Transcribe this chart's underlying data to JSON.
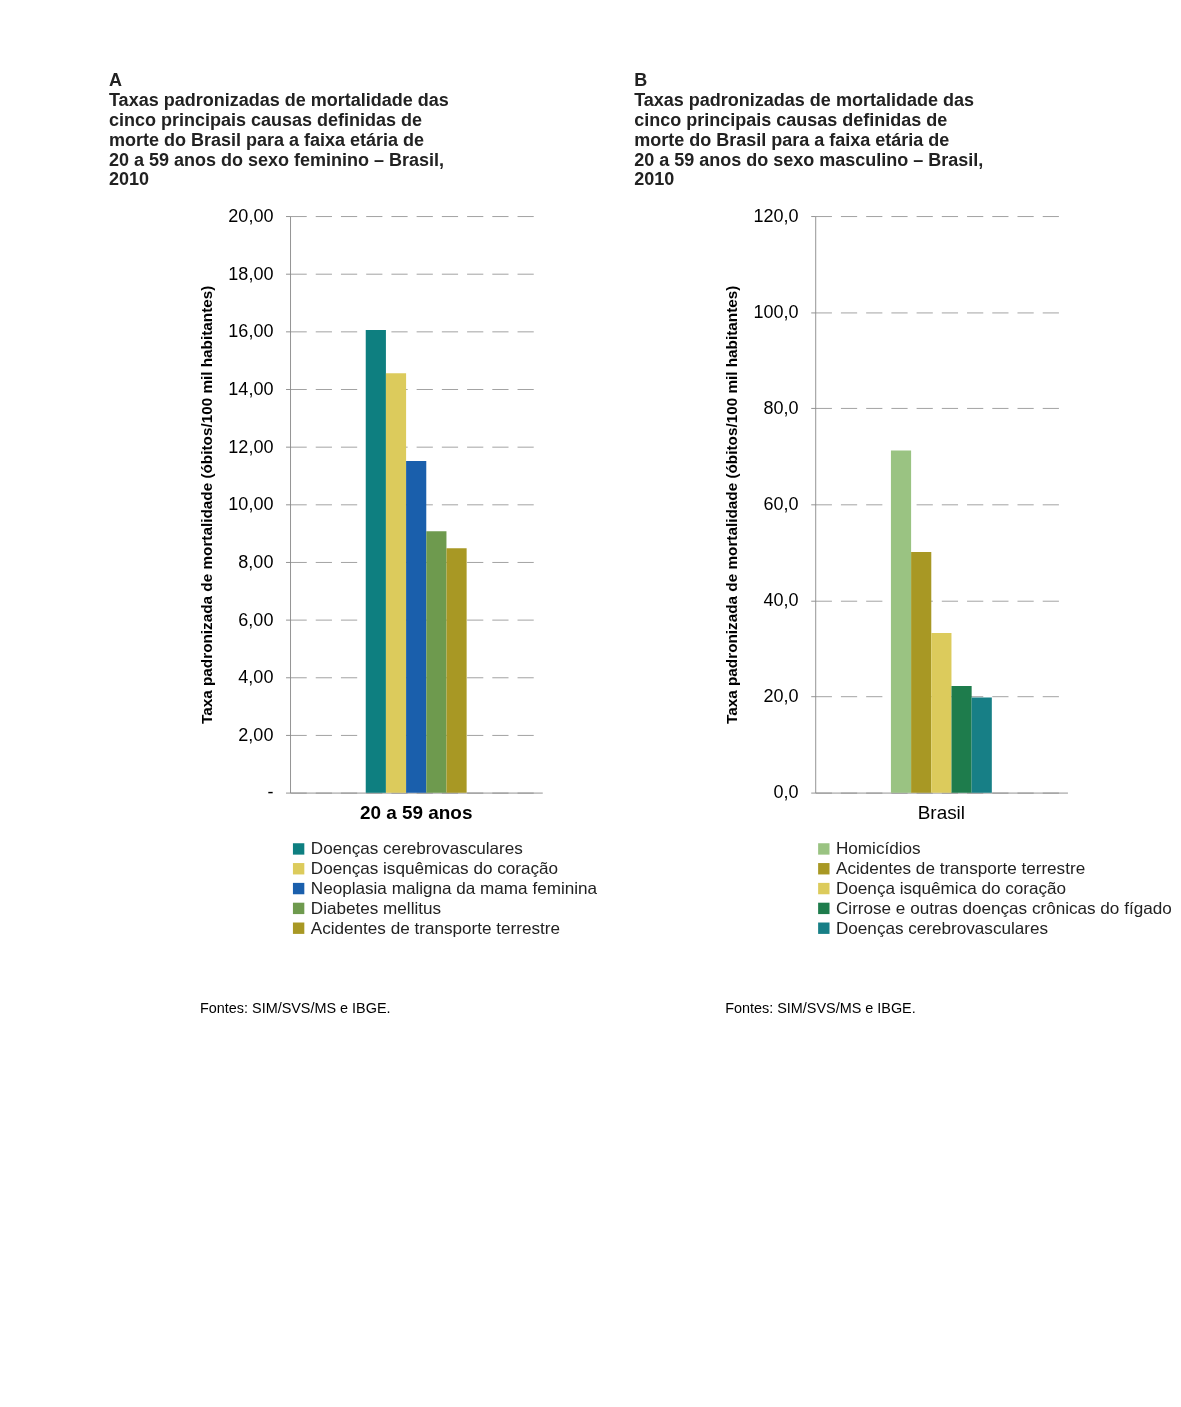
{
  "chart_data": [
    {
      "type": "bar",
      "title": "Taxas padronizadas de mortalidade das cinco principais causas definidas de morte do Brasil para a faixa etária de 20 a 59 anos do sexo feminino – Brasil, 2010",
      "ylabel": "Taxa padronizada de mortalidade (óbitos/100 mil habitantes)",
      "categories": [
        "20 a 59 anos"
      ],
      "series": [
        {
          "name": "Doenças cerebrovasculares",
          "color": "#0e7f80",
          "values": [
            16.05
          ]
        },
        {
          "name": "Doenças isquêmicas do coração",
          "color": "#dccb5c",
          "values": [
            14.55
          ]
        },
        {
          "name": "Neoplasia maligna da mama feminina",
          "color": "#1a5fac",
          "values": [
            11.5
          ]
        },
        {
          "name": "Diabetes mellitus",
          "color": "#6e9a4e",
          "values": [
            9.07
          ]
        },
        {
          "name": "Acidentes de transporte terrestre",
          "color": "#a89824",
          "values": [
            8.48
          ]
        }
      ],
      "ylim": [
        0,
        20
      ],
      "yticks": [
        {
          "value": 0,
          "label": "-"
        },
        {
          "value": 2,
          "label": "2,00"
        },
        {
          "value": 4,
          "label": "4,00"
        },
        {
          "value": 6,
          "label": "6,00"
        },
        {
          "value": 8,
          "label": "8,00"
        },
        {
          "value": 10,
          "label": "10,00"
        },
        {
          "value": 12,
          "label": "12,00"
        },
        {
          "value": 14,
          "label": "14,00"
        },
        {
          "value": 16,
          "label": "16,00"
        },
        {
          "value": 18,
          "label": "18,00"
        },
        {
          "value": 20,
          "label": "20,00"
        }
      ],
      "grid": "y",
      "legend": "bottom",
      "annotations": [
        "A",
        "Fontes: SIM/SVS/MS e IBGE."
      ]
    },
    {
      "type": "bar",
      "title": "Taxas padronizadas de mortalidade das cinco principais causas definidas de morte do Brasil para a faixa etária de 20 a 59 anos do sexo masculino – Brasil, 2010",
      "ylabel": "Taxa padronizada de mortalidade (óbitos/100 mil habitantes)",
      "categories": [
        "Brasil"
      ],
      "series": [
        {
          "name": "Homicídios",
          "color": "#9ac382",
          "values": [
            71.2
          ]
        },
        {
          "name": "Acidentes de transporte terrestre",
          "color": "#a89824",
          "values": [
            50.1
          ]
        },
        {
          "name": "Doença isquêmica do coração",
          "color": "#dccb5c",
          "values": [
            33.2
          ]
        },
        {
          "name": "Cirrose e outras doenças crônicas do fígado",
          "color": "#1e7c4c",
          "values": [
            22.2
          ]
        },
        {
          "name": "Doenças cerebrovasculares",
          "color": "#177f86",
          "values": [
            19.8
          ]
        }
      ],
      "ylim": [
        0,
        120
      ],
      "yticks": [
        {
          "value": 0,
          "label": "0,0"
        },
        {
          "value": 20,
          "label": "20,0"
        },
        {
          "value": 40,
          "label": "40,0"
        },
        {
          "value": 60,
          "label": "60,0"
        },
        {
          "value": 80,
          "label": "80,0"
        },
        {
          "value": 100,
          "label": "100,0"
        },
        {
          "value": 120,
          "label": "120,0"
        }
      ],
      "grid": "y",
      "legend": "bottom",
      "annotations": [
        "B",
        "Fontes: SIM/SVS/MS e IBGE."
      ]
    }
  ]
}
